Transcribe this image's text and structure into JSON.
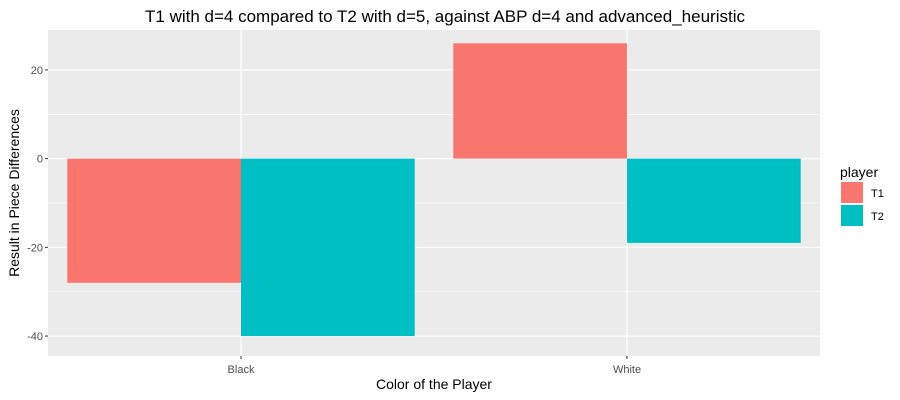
{
  "chart_data": {
    "type": "bar",
    "title": "T1 with d=4 compared to T2 with d=5, against ABP d=4 and advanced_heuristic",
    "xlabel": "Color of the Player",
    "ylabel": "Result in Piece Differences",
    "categories": [
      "Black",
      "White"
    ],
    "series": [
      {
        "name": "T1",
        "values": [
          -28,
          26
        ],
        "color": "#F8766D"
      },
      {
        "name": "T2",
        "values": [
          -40,
          -19
        ],
        "color": "#00BFC4"
      }
    ],
    "ylim": [
      -44.5,
      29
    ],
    "yticks": [
      -40,
      -20,
      0,
      20
    ],
    "grid": true,
    "legend": {
      "title": "player",
      "position": "right"
    },
    "panel_background": "#EBEBEB"
  }
}
